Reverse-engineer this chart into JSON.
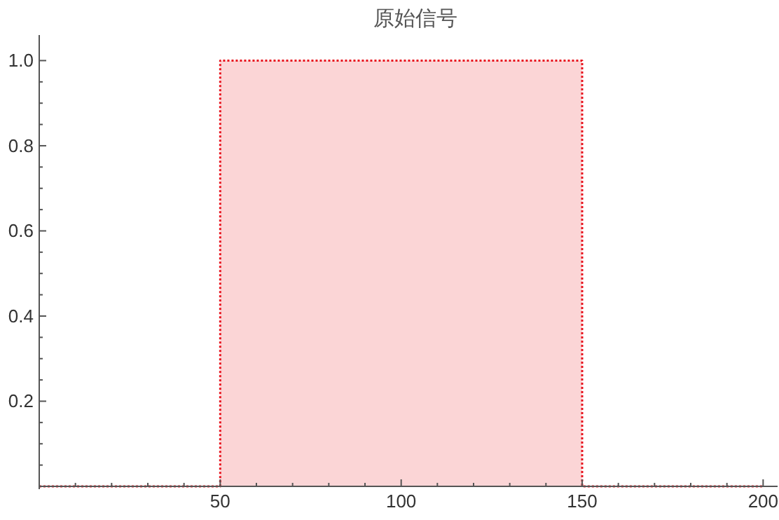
{
  "chart_data": {
    "type": "area",
    "title": "原始信号",
    "x": [
      0,
      50,
      50,
      150,
      150,
      200
    ],
    "series": [
      {
        "color": "#e8141e",
        "values": [
          0,
          0,
          1,
          1,
          0,
          0
        ]
      }
    ],
    "xlim": [
      0,
      204
    ],
    "ylim": [
      0,
      1.06
    ],
    "xticks": [
      {
        "value": 10,
        "label": null
      },
      {
        "value": 20,
        "label": null
      },
      {
        "value": 30,
        "label": null
      },
      {
        "value": 40,
        "label": null
      },
      50,
      {
        "value": 60,
        "label": null
      },
      {
        "value": 70,
        "label": null
      },
      {
        "value": 80,
        "label": null
      },
      {
        "value": 90,
        "label": null
      },
      100,
      {
        "value": 110,
        "label": null
      },
      {
        "value": 120,
        "label": null
      },
      {
        "value": 130,
        "label": null
      },
      {
        "value": 140,
        "label": null
      },
      150,
      {
        "value": 160,
        "label": null
      },
      {
        "value": 170,
        "label": null
      },
      {
        "value": 180,
        "label": null
      },
      {
        "value": 190,
        "label": null
      },
      200
    ],
    "yticks": [
      {
        "value": 0.05,
        "label": null
      },
      {
        "value": 0.1,
        "label": null
      },
      {
        "value": 0.15,
        "label": null
      },
      0.2,
      {
        "value": 0.25,
        "label": null
      },
      {
        "value": 0.3,
        "label": null
      },
      {
        "value": 0.35,
        "label": null
      },
      0.4,
      {
        "value": 0.45,
        "label": null
      },
      {
        "value": 0.5,
        "label": null
      },
      {
        "value": 0.55,
        "label": null
      },
      0.6,
      {
        "value": 0.65,
        "label": null
      },
      {
        "value": 0.7,
        "label": null
      },
      {
        "value": 0.75,
        "label": null
      },
      0.8,
      {
        "value": 0.85,
        "label": null
      },
      {
        "value": 0.9,
        "label": null
      },
      {
        "value": 0.95,
        "label": null
      },
      {
        "value": 1,
        "label": "1.0"
      }
    ],
    "line_style": "dotted"
  }
}
